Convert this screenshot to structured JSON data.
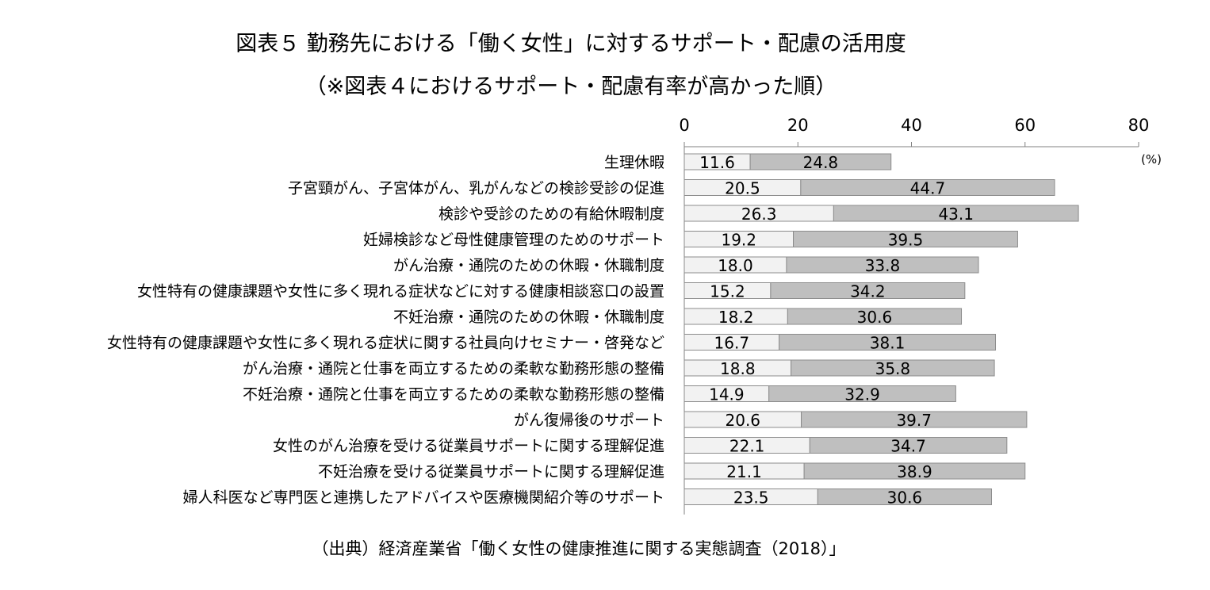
{
  "title": "図表５ 勤務先における「働く女性」に対するサポート・配慮の活用度",
  "subtitle": "（※図表４におけるサポート・配慮有率が高かった順）",
  "source": "（出典）経済産業省「働く女性の健康推進に関する実態調査（2018）」",
  "colors": {
    "series1": "#f2f2f2",
    "series2": "#bfbfbf",
    "border": "#8c8c8c"
  },
  "chart_data": {
    "type": "bar",
    "orientation": "horizontal",
    "stacked": true,
    "xlim": [
      0,
      80
    ],
    "xticks": [
      "0",
      "20",
      "40",
      "60",
      "80"
    ],
    "unit_label": "(%)",
    "grid": false,
    "categories": [
      "生理休暇",
      "子宮頸がん、子宮体がん、乳がんなどの検診受診の促進",
      "検診や受診のための有給休暇制度",
      "妊婦検診など母性健康管理のためのサポート",
      "がん治療・通院のための休暇・休職制度",
      "女性特有の健康課題や女性に多く現れる症状などに対する健康相談窓口の設置",
      "不妊治療・通院のための休暇・休職制度",
      "女性特有の健康課題や女性に多く現れる症状に関する社員向けセミナー・啓発など",
      "がん治療・通院と仕事を両立するための柔軟な勤務形態の整備",
      "不妊治療・通院と仕事を両立するための柔軟な勤務形態の整備",
      "がん復帰後のサポート",
      "女性のがん治療を受ける従業員サポートに関する理解促進",
      "不妊治療を受ける従業員サポートに関する理解促進",
      "婦人科医など専門医と連携したアドバイスや医療機関紹介等のサポート"
    ],
    "series": [
      {
        "values": [
          11.6,
          20.5,
          26.3,
          19.2,
          18.0,
          15.2,
          18.2,
          16.7,
          18.8,
          14.9,
          20.6,
          22.1,
          21.1,
          23.5
        ],
        "labels": [
          "11.6",
          "20.5",
          "26.3",
          "19.2",
          "18.0",
          "15.2",
          "18.2",
          "16.7",
          "18.8",
          "14.9",
          "20.6",
          "22.1",
          "21.1",
          "23.5"
        ]
      },
      {
        "values": [
          24.8,
          44.7,
          43.1,
          39.5,
          33.8,
          34.2,
          30.6,
          38.1,
          35.8,
          32.9,
          39.7,
          34.7,
          38.9,
          30.6
        ],
        "labels": [
          "24.8",
          "44.7",
          "43.1",
          "39.5",
          "33.8",
          "34.2",
          "30.6",
          "38.1",
          "35.8",
          "32.9",
          "39.7",
          "34.7",
          "38.9",
          "30.6"
        ]
      }
    ]
  }
}
